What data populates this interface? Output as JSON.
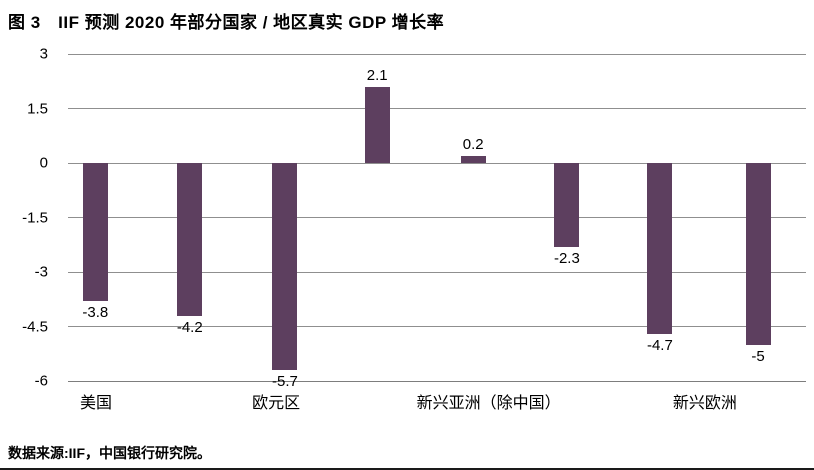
{
  "title": "图 3　IIF 预测 2020 年部分国家 / 地区真实 GDP 增长率",
  "source_note": "数据来源:IIF，中国银行研究院。",
  "colors": {
    "bar": "#5d3f5f",
    "gridline": "#8f8f8f",
    "axis_line": "#7d7d7d",
    "text": "#000000",
    "background": "#ffffff"
  },
  "chart_data": {
    "type": "bar",
    "title": "图 3　IIF 预测 2020 年部分国家 / 地区真实 GDP 增长率",
    "xlabel": "",
    "ylabel": "",
    "values": [
      -3.8,
      -4.2,
      -5.7,
      2.1,
      0.2,
      -2.3,
      -4.7,
      -5
    ],
    "bar_value_labels": [
      "-3.8",
      "-4.2",
      "-5.7",
      "2.1",
      "0.2",
      "-2.3",
      "-4.7",
      "-5"
    ],
    "x_tick_labels": [
      {
        "text": "美国",
        "center_pct": 3.8
      },
      {
        "text": "欧元区",
        "center_pct": 28.2
      },
      {
        "text": "新兴亚洲（除中国）",
        "center_pct": 57.0
      },
      {
        "text": "新兴欧洲",
        "center_pct": 86.3
      }
    ],
    "y_ticks": [
      3,
      1.5,
      0,
      -1.5,
      -3,
      -4.5,
      -6
    ],
    "y_tick_labels": [
      "3",
      "1.5",
      "0",
      "-1.5",
      "-3",
      "-4.5",
      "-6"
    ],
    "ylim": [
      -6,
      3
    ],
    "bar_centers_pct": [
      3.7,
      16.5,
      29.4,
      41.9,
      54.9,
      67.6,
      80.2,
      93.5
    ],
    "grid": true,
    "legend": false,
    "source": "数据来源:IIF，中国银行研究院。"
  }
}
